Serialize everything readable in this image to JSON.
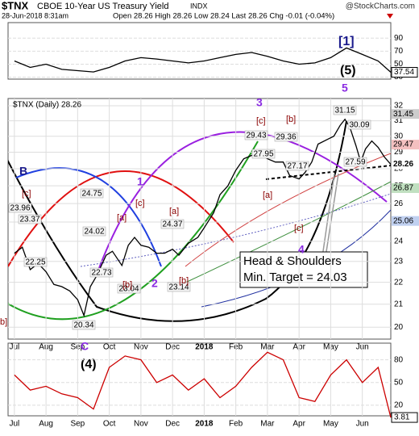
{
  "header": {
    "symbol": "$TNX",
    "name": "CBOE 10-Year US Treasury Yield",
    "exchange": "INDX",
    "date": "28-Jun-2018 8:31am",
    "quote": "Open 28.26 High 28.26 Low 28.24 Last 28.26 Chg -0.01 (-0.04%)",
    "credit": "@StockCharts.com"
  },
  "chart_data": [
    {
      "type": "line",
      "xlim": [
        -0.2,
        11.9
      ],
      "ylim": [
        27,
        114
      ],
      "yticks": [
        30,
        50,
        70,
        90
      ],
      "grid": true,
      "x": [
        0,
        0.5,
        1,
        1.5,
        2,
        2.5,
        3,
        3.5,
        4,
        4.5,
        5,
        5.5,
        6,
        6.5,
        7,
        7.5,
        8,
        8.5,
        9,
        9.5,
        10,
        10.5,
        11,
        11.5,
        11.9
      ],
      "series": [
        {
          "color": "#000000",
          "values": [
            55,
            45,
            50,
            42,
            40,
            38,
            45,
            55,
            60,
            58,
            55,
            52,
            55,
            60,
            65,
            68,
            62,
            55,
            50,
            52,
            60,
            75,
            65,
            55,
            37.54
          ]
        }
      ],
      "last_label": 37.54
    },
    {
      "type": "line",
      "log_scale": true,
      "legend_text": "$TNX (Daily) 28.26",
      "xlim": [
        -0.2,
        11.9
      ],
      "ylim": [
        19.5,
        32.5
      ],
      "yticks": [
        20,
        21,
        22,
        23,
        24,
        25,
        26,
        27,
        28,
        29,
        30,
        31,
        32
      ],
      "grid": true,
      "xticks": [
        {
          "value": 0,
          "label": "Jul"
        },
        {
          "value": 1,
          "label": "Aug"
        },
        {
          "value": 2,
          "label": "Sep"
        },
        {
          "value": 3,
          "label": "Oct"
        },
        {
          "value": 4,
          "label": "Nov"
        },
        {
          "value": 5,
          "label": "Dec"
        },
        {
          "value": 6,
          "label": "2018"
        },
        {
          "value": 7,
          "label": "Feb"
        },
        {
          "value": 8,
          "label": "Mar"
        },
        {
          "value": 9,
          "label": "Apr"
        },
        {
          "value": 10,
          "label": "May"
        },
        {
          "value": 11,
          "label": "Jun"
        }
      ],
      "x": [
        0,
        0.25,
        0.5,
        0.75,
        1,
        1.25,
        1.5,
        1.75,
        2,
        2.2,
        2.4,
        2.6,
        2.9,
        3.1,
        3.4,
        3.6,
        3.8,
        4,
        4.25,
        4.5,
        4.75,
        5,
        5.2,
        5.5,
        5.8,
        6,
        6.3,
        6.5,
        6.75,
        7,
        7.25,
        7.5,
        7.7,
        8,
        8.25,
        8.5,
        8.7,
        9,
        9.2,
        9.4,
        9.6,
        9.9,
        10.1,
        10.3,
        10.45,
        10.6,
        10.8,
        10.95,
        11.1,
        11.3,
        11.5,
        11.7,
        11.9
      ],
      "series": [
        {
          "color": "#000000",
          "values": [
            23.4,
            23.7,
            22.6,
            22.9,
            22.5,
            21.9,
            21.8,
            21.6,
            21.2,
            20.5,
            21.8,
            22.3,
            23.3,
            23.5,
            22.8,
            23.8,
            24.2,
            23.8,
            23.7,
            23.4,
            23.4,
            23.6,
            23.3,
            23.9,
            24.2,
            24.7,
            25.5,
            26.5,
            27,
            27.9,
            28.6,
            28.8,
            29,
            28.6,
            28.4,
            28.4,
            27.6,
            27.4,
            27.8,
            28.4,
            29.5,
            29.8,
            30,
            30.7,
            31.1,
            30.6,
            29.4,
            28.4,
            29.2,
            29.7,
            29.3,
            28.7,
            28.26
          ]
        }
      ],
      "right_labels": [
        31.45,
        29.47,
        28.26,
        26.87,
        25.06
      ],
      "price_labels": [
        23.96,
        23.37,
        22.25,
        20.34,
        24.02,
        24.75,
        22.73,
        23.04,
        24.37,
        23.14,
        29.43,
        27.95,
        29.36,
        27.17,
        31.15,
        30.09,
        27.59
      ],
      "annotations": [
        "[1]",
        "(5)",
        "5",
        "3",
        "[c]",
        "[b]",
        "[a]",
        "[c]",
        "4",
        "Head & Shoulders",
        "Min. Target = 24.03",
        "1",
        "[c]",
        "[a]",
        "[a]",
        "[b]",
        "2",
        "[b]",
        "B",
        "[c]",
        "b]",
        "C",
        "(4)"
      ]
    },
    {
      "type": "line",
      "xlim": [
        -0.2,
        11.9
      ],
      "ylim": [
        6,
        102
      ],
      "yticks": [
        20,
        50,
        80
      ],
      "grid": true,
      "xticks": [
        {
          "value": 0,
          "label": "Jul"
        },
        {
          "value": 1,
          "label": "Aug"
        },
        {
          "value": 2,
          "label": "Sep"
        },
        {
          "value": 3,
          "label": "Oct"
        },
        {
          "value": 4,
          "label": "Nov"
        },
        {
          "value": 5,
          "label": "Dec"
        },
        {
          "value": 6,
          "label": "2018"
        },
        {
          "value": 7,
          "label": "Feb"
        },
        {
          "value": 8,
          "label": "Mar"
        },
        {
          "value": 9,
          "label": "Apr"
        },
        {
          "value": 10,
          "label": "May"
        },
        {
          "value": 11,
          "label": "Jun"
        }
      ],
      "x": [
        0,
        0.5,
        1,
        1.5,
        2,
        2.5,
        3,
        3.5,
        4,
        4.5,
        5,
        5.5,
        6,
        6.5,
        7,
        7.5,
        8,
        8.5,
        9,
        9.5,
        10,
        10.5,
        11,
        11.5,
        11.9
      ],
      "series": [
        {
          "color": "#cc0000",
          "values": [
            60,
            40,
            45,
            35,
            30,
            15,
            70,
            85,
            80,
            50,
            60,
            40,
            55,
            30,
            45,
            70,
            90,
            80,
            30,
            25,
            60,
            80,
            50,
            70,
            3.81
          ]
        }
      ],
      "last_label": 3.81
    }
  ]
}
